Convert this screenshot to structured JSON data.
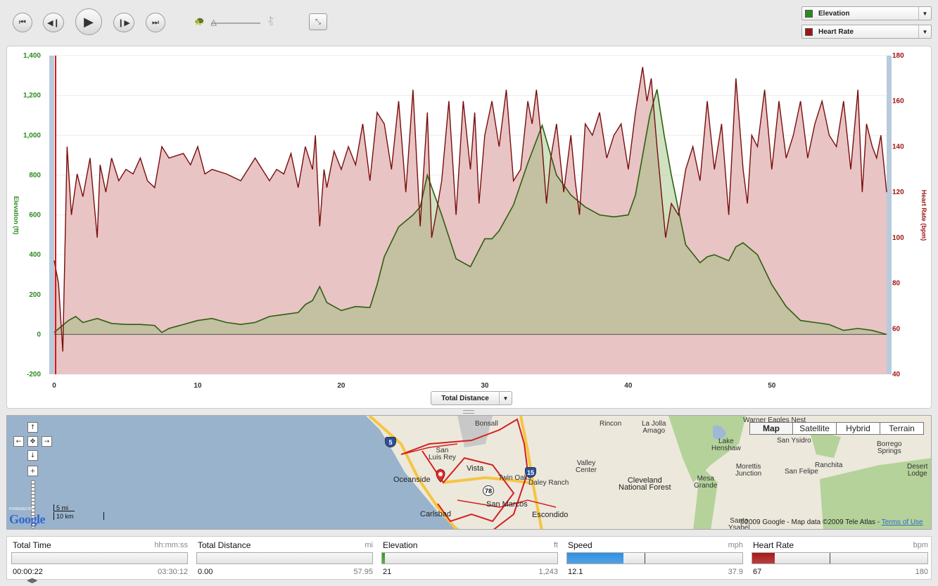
{
  "controls": {
    "first_icon": "skip-back-icon",
    "first": "⏮",
    "prev_icon": "step-back-icon",
    "prev": "◀❙",
    "play_icon": "play-icon",
    "play": "▶",
    "next_icon": "step-forward-icon",
    "next": "❙▶",
    "last_icon": "skip-forward-icon",
    "last": "⏭",
    "slow_icon": "turtle-icon",
    "slow": "🐢",
    "fast_icon": "rabbit-icon",
    "fast": "🐇",
    "speed_fraction": 0.05,
    "fullscreen_icon": "collapse-icon",
    "fullscreen": "⤡"
  },
  "series_selectors": [
    {
      "label": "Elevation",
      "color": "#2b8a1e"
    },
    {
      "label": "Heart Rate",
      "color": "#a01414"
    }
  ],
  "chart_data": {
    "type": "area",
    "x_label": "Total Distance",
    "x_ticks": [
      "0",
      "10",
      "20",
      "30",
      "40",
      "50"
    ],
    "x_range": [
      0,
      58
    ],
    "y_left": {
      "label": "Elevation (ft)",
      "ticks": [
        "-200",
        "0",
        "200",
        "400",
        "600",
        "800",
        "1,000",
        "1,200",
        "1,400"
      ],
      "range": [
        -200,
        1400
      ],
      "color": "#2b8a1e"
    },
    "y_right": {
      "label": "Heart Rate (bpm)",
      "ticks": [
        "40",
        "60",
        "80",
        "100",
        "120",
        "140",
        "160",
        "180"
      ],
      "range": [
        40,
        180
      ],
      "color": "#a01414"
    },
    "elevation": {
      "x": [
        0,
        1,
        1.5,
        2,
        3,
        4,
        5,
        6,
        7,
        7.5,
        8,
        9,
        10,
        11,
        12,
        13,
        14,
        15,
        16,
        17,
        17.5,
        18,
        18.5,
        19,
        20,
        21,
        22,
        22.5,
        23,
        24,
        25,
        25.5,
        26,
        26.5,
        27,
        28,
        29,
        30,
        30.5,
        31,
        32,
        33,
        34,
        35,
        36,
        37,
        38,
        39,
        40,
        40.5,
        41,
        41.5,
        42,
        42.5,
        43,
        44,
        45,
        45.5,
        46,
        47,
        47.5,
        48,
        49,
        50,
        51,
        52,
        53,
        54,
        55,
        56,
        57,
        58
      ],
      "y": [
        10,
        70,
        90,
        60,
        80,
        55,
        50,
        50,
        45,
        10,
        30,
        50,
        70,
        80,
        60,
        50,
        60,
        90,
        100,
        110,
        150,
        170,
        240,
        160,
        120,
        140,
        135,
        250,
        390,
        540,
        600,
        640,
        800,
        700,
        600,
        380,
        340,
        480,
        480,
        520,
        650,
        860,
        1050,
        800,
        700,
        640,
        600,
        590,
        600,
        700,
        900,
        1100,
        1230,
        1000,
        800,
        450,
        360,
        390,
        400,
        370,
        440,
        460,
        400,
        250,
        140,
        70,
        60,
        50,
        20,
        30,
        20,
        0
      ]
    },
    "heart_rate": {
      "x": [
        0,
        0.3,
        0.6,
        0.9,
        1.2,
        1.6,
        2,
        2.5,
        3,
        3.2,
        3.6,
        4,
        4.5,
        5,
        5.5,
        6,
        6.5,
        7,
        7.5,
        8,
        9,
        9.5,
        10,
        10.5,
        11,
        12,
        13,
        14,
        15,
        15.5,
        16,
        16.5,
        17,
        17.5,
        18,
        18.2,
        18.5,
        18.8,
        19,
        19.5,
        20,
        20.5,
        21,
        21.5,
        22,
        22.5,
        23,
        23.5,
        24,
        24.5,
        25,
        25.5,
        26,
        26.3,
        26.6,
        27,
        27.5,
        28,
        28.5,
        29,
        29.3,
        29.6,
        30,
        30.5,
        31,
        31.5,
        32,
        32.5,
        33,
        33.3,
        33.6,
        34,
        34.3,
        34.6,
        35,
        35.5,
        36,
        36.3,
        36.6,
        37,
        37.5,
        38,
        38.5,
        39,
        39.5,
        40,
        40.5,
        41,
        41.3,
        41.6,
        42,
        42.3,
        42.6,
        43,
        43.5,
        44,
        44.5,
        45,
        45.5,
        46,
        46.5,
        47,
        47.5,
        48,
        48.3,
        48.6,
        49,
        49.5,
        50,
        50.5,
        51,
        51.5,
        52,
        52.5,
        53,
        53.5,
        54,
        54.5,
        55,
        55.5,
        56,
        56.3,
        56.6,
        57,
        57.3,
        57.6,
        58
      ],
      "y": [
        90,
        80,
        50,
        140,
        110,
        128,
        118,
        135,
        100,
        132,
        120,
        135,
        125,
        130,
        128,
        135,
        125,
        122,
        140,
        135,
        137,
        132,
        140,
        128,
        130,
        128,
        125,
        135,
        125,
        130,
        128,
        137,
        122,
        140,
        130,
        145,
        105,
        130,
        122,
        138,
        130,
        140,
        132,
        150,
        125,
        155,
        150,
        130,
        160,
        120,
        165,
        105,
        155,
        100,
        110,
        125,
        160,
        110,
        160,
        130,
        155,
        115,
        145,
        160,
        140,
        165,
        125,
        130,
        160,
        150,
        165,
        140,
        115,
        135,
        150,
        120,
        145,
        125,
        110,
        150,
        145,
        155,
        135,
        145,
        150,
        130,
        155,
        175,
        160,
        170,
        140,
        120,
        100,
        115,
        110,
        130,
        140,
        125,
        160,
        130,
        150,
        110,
        170,
        130,
        115,
        145,
        140,
        165,
        130,
        160,
        135,
        145,
        160,
        135,
        150,
        160,
        145,
        140,
        160,
        130,
        165,
        120,
        150,
        140,
        135,
        145,
        120
      ],
      "area_fill": "#e8c4c4"
    },
    "cursor_x": 0.1
  },
  "map": {
    "type_buttons": [
      "Map",
      "Satellite",
      "Hybrid",
      "Terrain"
    ],
    "active_type": "Map",
    "labels": [
      {
        "text": "Bonsall"
      },
      {
        "text": "San Luis Rey"
      },
      {
        "text": "Vista"
      },
      {
        "text": "Oceanside"
      },
      {
        "text": "Twin Oaks"
      },
      {
        "text": "Daley Ranch"
      },
      {
        "text": "San Marcos"
      },
      {
        "text": "Carlsbad"
      },
      {
        "text": "Escondido"
      },
      {
        "text": "Valley Center"
      },
      {
        "text": "Rincon"
      },
      {
        "text": "La Jolla Amago"
      },
      {
        "text": "Cleveland National Forest"
      },
      {
        "text": "Lake Henshaw"
      },
      {
        "text": "Mesa Grande"
      },
      {
        "text": "Morettis Junction"
      },
      {
        "text": "San Ysidro"
      },
      {
        "text": "San Felipe"
      },
      {
        "text": "Ranchita"
      },
      {
        "text": "Borrego Springs"
      },
      {
        "text": "Desert Lodge"
      },
      {
        "text": "Warner Eagles Nest"
      },
      {
        "text": "Santa Ysabel"
      }
    ],
    "shields": [
      "5",
      "78",
      "15"
    ],
    "powered_by": "POWERED BY",
    "google": "Google",
    "scale_mi": "5 mi",
    "scale_km": "10 km",
    "copyright": "©2009 Google - Map data ©2009  Tele Atlas - ",
    "terms": "Terms of Use",
    "nav_icons": {
      "up": "↑",
      "down": "↓",
      "left": "←",
      "right": "→",
      "center": "✥",
      "zoom_in": "+",
      "zoom_out": "−"
    }
  },
  "stats": [
    {
      "title": "Total Time",
      "unit": "hh:mm:ss",
      "current": "00:00:22",
      "max": "03:30:12",
      "fill_fraction": 0.0,
      "color": "#cccccc"
    },
    {
      "title": "Total Distance",
      "unit": "mi",
      "current": "0.00",
      "max": "57.95",
      "fill_fraction": 0.0,
      "color": "#cccccc"
    },
    {
      "title": "Elevation",
      "unit": "ft",
      "current": "21",
      "max": "1,243",
      "fill_fraction": 0.017,
      "color": "#3a9a22"
    },
    {
      "title": "Speed",
      "unit": "mph",
      "current": "12.1",
      "max": "37.9",
      "fill_fraction": 0.32,
      "color": "#2f8fe0"
    },
    {
      "title": "Heart Rate",
      "unit": "bpm",
      "current": "67",
      "max": "180",
      "fill_fraction": 0.13,
      "color": "#a81818"
    }
  ]
}
